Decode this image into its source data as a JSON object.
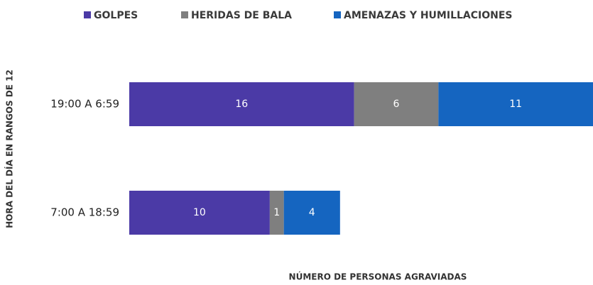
{
  "chart_data": {
    "type": "stacked_barh",
    "categories": [
      "19:00 A 6:59",
      "7:00 A 18:59"
    ],
    "series": [
      {
        "name": "GOLPES",
        "color": "#4b3aa6",
        "values": [
          16,
          10
        ]
      },
      {
        "name": "HERIDAS DE BALA",
        "color": "#7f7f7f",
        "values": [
          6,
          1
        ]
      },
      {
        "name": "AMENAZAS Y HUMILLACIONES",
        "color": "#1565c0",
        "values": [
          11,
          4
        ]
      }
    ],
    "xlabel": "NÚMERO DE PERSONAS AGRAVIADAS",
    "ylabel": "HORA DEL DÍA EN RANGOS DE 12",
    "xlim": [
      0,
      33
    ]
  }
}
